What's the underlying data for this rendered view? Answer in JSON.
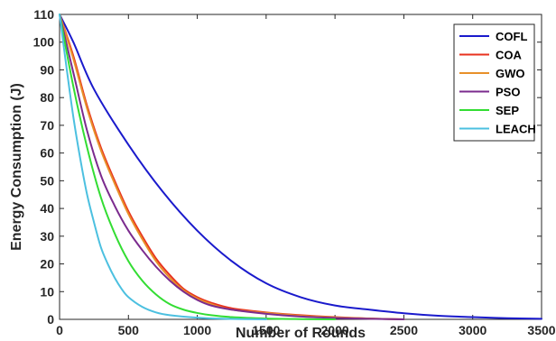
{
  "chart_data": {
    "type": "line",
    "title": "",
    "xlabel": "Number of Rounds",
    "ylabel": "Energy Consumption (J)",
    "xlim": [
      0,
      3500
    ],
    "ylim": [
      0,
      110
    ],
    "xticks": [
      "0",
      "500",
      "1000",
      "1500",
      "2000",
      "2500",
      "3000",
      "3500"
    ],
    "yticks": [
      "0",
      "10",
      "20",
      "30",
      "40",
      "50",
      "60",
      "70",
      "80",
      "90",
      "100",
      "110"
    ],
    "grid": false,
    "legend_position": "top-right",
    "series": [
      {
        "name": "COFL",
        "color": "#1a1acc",
        "x": [
          0,
          100,
          250,
          500,
          750,
          1000,
          1250,
          1500,
          1750,
          2000,
          2250,
          2500,
          2750,
          3000,
          3250,
          3500
        ],
        "y": [
          110,
          100,
          83,
          63,
          46,
          32,
          21,
          13,
          8,
          5,
          3.5,
          2.2,
          1.3,
          0.8,
          0.4,
          0.2
        ]
      },
      {
        "name": "COA",
        "color": "#e8321e",
        "x": [
          0,
          100,
          200,
          300,
          400,
          500,
          600,
          700,
          800,
          900,
          1000,
          1100,
          1250,
          1500,
          1750,
          2000,
          2250,
          2500
        ],
        "y": [
          110,
          95,
          77,
          62,
          50,
          39,
          30,
          22,
          16,
          11,
          8,
          6,
          4,
          2.5,
          1.5,
          0.8,
          0.3,
          0
        ]
      },
      {
        "name": "GWO",
        "color": "#e8902a",
        "x": [
          0,
          100,
          200,
          300,
          400,
          500,
          600,
          700,
          800,
          900,
          1000,
          1100,
          1250,
          1500,
          1750,
          2000,
          2250,
          2500
        ],
        "y": [
          110,
          94,
          76,
          61,
          49,
          38,
          29,
          21,
          15,
          10.5,
          7.5,
          5.5,
          3.5,
          2.3,
          1.3,
          0.7,
          0.3,
          0
        ]
      },
      {
        "name": "PSO",
        "color": "#7b2b8e",
        "x": [
          0,
          100,
          200,
          300,
          400,
          500,
          600,
          700,
          800,
          900,
          1000,
          1100,
          1250,
          1500,
          1750,
          2000,
          2250,
          2500
        ],
        "y": [
          110,
          89,
          68,
          52,
          41,
          32,
          25,
          19,
          14,
          10,
          7,
          5,
          3.5,
          2,
          1,
          0.5,
          0.2,
          0
        ]
      },
      {
        "name": "SEP",
        "color": "#33dd33",
        "x": [
          0,
          100,
          200,
          300,
          400,
          500,
          600,
          700,
          800,
          900,
          1000,
          1100,
          1250,
          1500,
          1750,
          2000
        ],
        "y": [
          110,
          84,
          62,
          44,
          31,
          21,
          14,
          9,
          5.5,
          3.5,
          2.3,
          1.5,
          0.8,
          0.3,
          0.1,
          0
        ]
      },
      {
        "name": "LEACH",
        "color": "#4cc0e0",
        "x": [
          0,
          50,
          100,
          150,
          200,
          250,
          300,
          350,
          400,
          450,
          500,
          600,
          700,
          800,
          1000,
          1200,
          1500
        ],
        "y": [
          110,
          91,
          73,
          58,
          45,
          35,
          26,
          20,
          15,
          11,
          8,
          4.5,
          2.5,
          1.5,
          0.6,
          0.2,
          0
        ]
      }
    ]
  }
}
